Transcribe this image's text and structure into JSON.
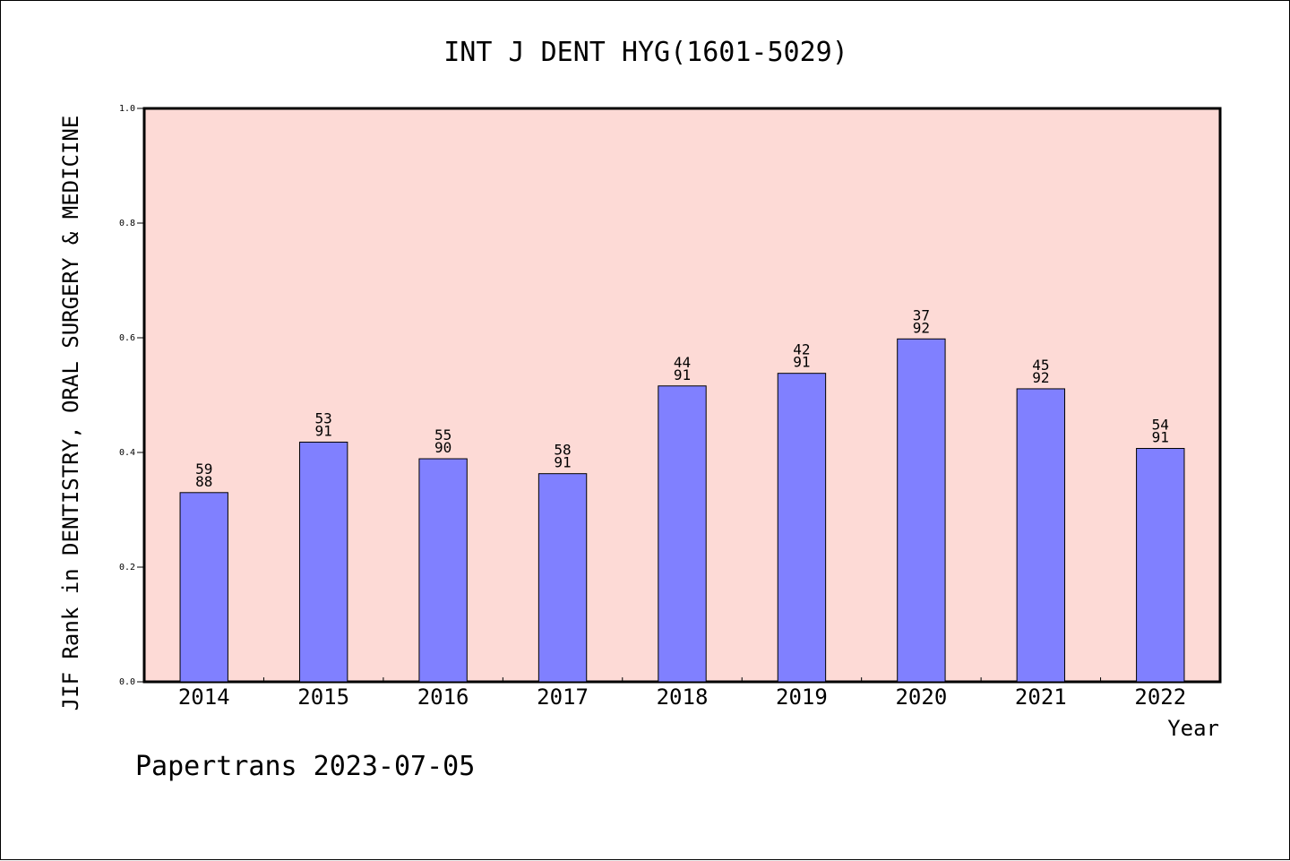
{
  "chart_data": {
    "type": "bar",
    "title": "INT J DENT HYG(1601-5029)",
    "xlabel": "Year",
    "ylabel": "JIF Rank in DENTISTRY, ORAL SURGERY & MEDICINE",
    "footer": "Papertrans 2023-07-05",
    "ylim": [
      0,
      1.0
    ],
    "yticks": [
      "0.0",
      "0.2",
      "0.4",
      "0.6",
      "0.8",
      "1.0"
    ],
    "categories": [
      "2014",
      "2015",
      "2016",
      "2017",
      "2018",
      "2019",
      "2020",
      "2021",
      "2022"
    ],
    "values": [
      0.33,
      0.418,
      0.389,
      0.363,
      0.516,
      0.538,
      0.598,
      0.511,
      0.407
    ],
    "rank_labels": [
      "59",
      "53",
      "55",
      "58",
      "44",
      "42",
      "37",
      "45",
      "54"
    ],
    "total_labels": [
      "88",
      "91",
      "90",
      "91",
      "91",
      "91",
      "92",
      "92",
      "91"
    ],
    "grid": false,
    "colors": {
      "plot_background": "#fddad6",
      "bar_fill": "#8080ff",
      "bar_stroke": "#000000"
    }
  }
}
